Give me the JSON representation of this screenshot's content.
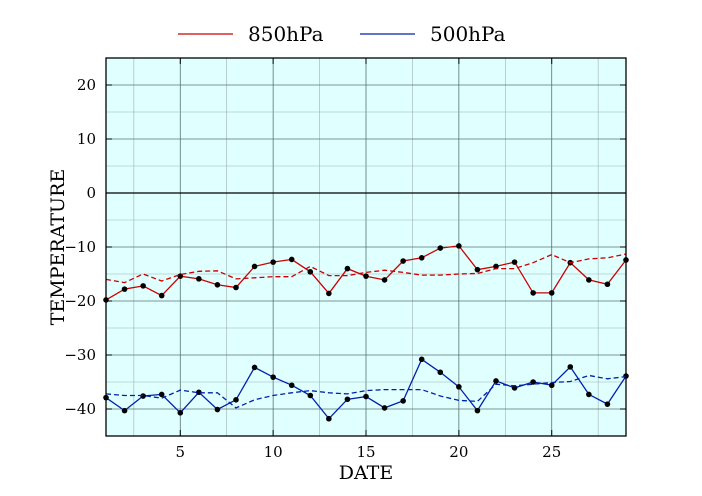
{
  "chart_data": {
    "type": "line",
    "title": "",
    "xlabel": "DATE",
    "ylabel": "TEMPERATURE",
    "xlim": [
      1,
      29
    ],
    "ylim": [
      -45,
      25
    ],
    "xticks": [
      5,
      10,
      15,
      20,
      25
    ],
    "yticks": [
      -40,
      -30,
      -20,
      -10,
      0,
      10,
      20
    ],
    "ytick_labels": [
      "−40",
      "−30",
      "−20",
      "−10",
      "0",
      "10",
      "20"
    ],
    "grid": true,
    "background": "#e0ffff",
    "legend_position": "top-center",
    "x": [
      1,
      2,
      3,
      4,
      5,
      6,
      7,
      8,
      9,
      10,
      11,
      12,
      13,
      14,
      15,
      16,
      17,
      18,
      19,
      20,
      21,
      22,
      23,
      24,
      25,
      26,
      27,
      28,
      29
    ],
    "series": [
      {
        "name": "850hPa",
        "color": "#cc0000",
        "style": "solid",
        "markers": true,
        "values": [
          -19.8,
          -17.8,
          -17.2,
          -19.0,
          -15.4,
          -15.9,
          -17.0,
          -17.5,
          -13.6,
          -12.8,
          -12.3,
          -14.6,
          -18.6,
          -14.0,
          -15.4,
          -16.1,
          -12.6,
          -12.0,
          -10.2,
          -9.8,
          -14.2,
          -13.6,
          -12.8,
          -18.5,
          -18.5,
          -12.9,
          -16.1,
          -16.9,
          -12.4
        ]
      },
      {
        "name": "",
        "color": "#cc0000",
        "style": "dashed",
        "markers": false,
        "values": [
          -16.0,
          -16.6,
          -15.0,
          -16.3,
          -15.1,
          -14.5,
          -14.4,
          -15.9,
          -15.7,
          -15.5,
          -15.5,
          -13.6,
          -15.3,
          -15.3,
          -14.7,
          -14.3,
          -14.7,
          -15.2,
          -15.2,
          -15.0,
          -14.9,
          -14.0,
          -14.0,
          -12.9,
          -11.4,
          -12.9,
          -12.2,
          -12.0,
          -11.3
        ]
      },
      {
        "name": "500hPa",
        "color": "#0022aa",
        "style": "solid",
        "markers": true,
        "values": [
          -37.9,
          -40.3,
          -37.6,
          -37.3,
          -40.7,
          -36.9,
          -40.1,
          -38.3,
          -32.3,
          -34.1,
          -35.6,
          -37.5,
          -41.8,
          -38.2,
          -37.7,
          -39.8,
          -38.5,
          -30.8,
          -33.2,
          -35.9,
          -40.3,
          -34.8,
          -36.1,
          -35.0,
          -35.6,
          -32.2,
          -37.3,
          -39.1,
          -33.9
        ]
      },
      {
        "name": "",
        "color": "#0022aa",
        "style": "dashed",
        "markers": false,
        "values": [
          -37.2,
          -37.5,
          -37.5,
          -38.0,
          -36.5,
          -37.0,
          -37.0,
          -39.8,
          -38.3,
          -37.5,
          -37.0,
          -36.6,
          -37.0,
          -37.2,
          -36.6,
          -36.4,
          -36.4,
          -36.4,
          -37.6,
          -38.4,
          -38.6,
          -35.4,
          -35.7,
          -35.4,
          -35.1,
          -34.9,
          -33.8,
          -34.4,
          -34.0
        ]
      }
    ]
  }
}
